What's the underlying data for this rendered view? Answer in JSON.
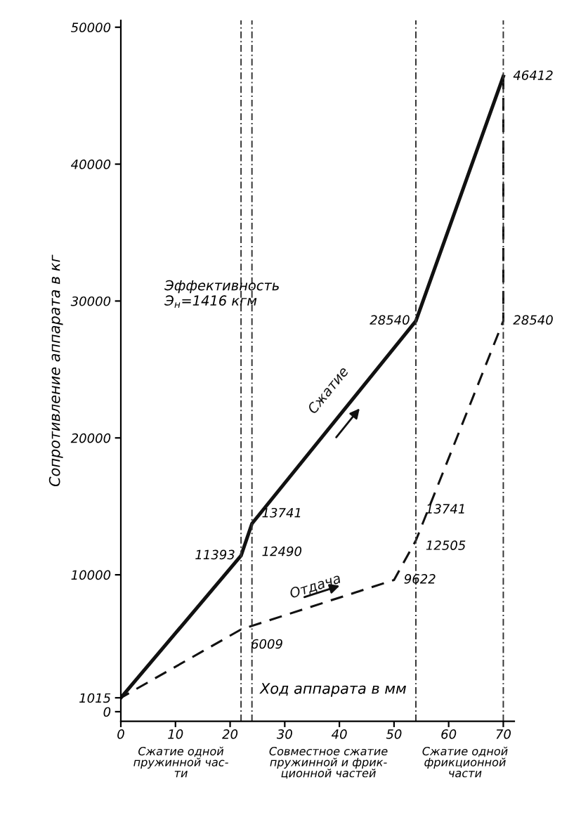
{
  "chart_data": {
    "type": "line",
    "ylabel": "Сопротивление аппарата в кг",
    "xlabel": "Ход аппарата в мм",
    "series": [
      {
        "name": "Сжатие",
        "color": "#111111",
        "line_style": "solid",
        "x": [
          0,
          22,
          24,
          54,
          70
        ],
        "values": [
          1015,
          11393,
          13741,
          28540,
          46412
        ]
      },
      {
        "name": "Отдача",
        "color": "#111111",
        "line_style": "dashed",
        "x": [
          70,
          70,
          54,
          50,
          22,
          0
        ],
        "values": [
          46412,
          28540,
          12505,
          9622,
          6009,
          1015
        ]
      }
    ],
    "xlim": [
      0,
      72
    ],
    "ylim": [
      -700,
      50500
    ],
    "xticks": [
      0,
      10,
      20,
      30,
      40,
      50,
      60,
      70
    ],
    "yticks": [
      0,
      1015,
      10000,
      20000,
      30000,
      40000,
      50000
    ],
    "ref_lines": [
      {
        "axis": "x",
        "value": 22,
        "line_style": "dashed",
        "color": "#333333"
      },
      {
        "axis": "x",
        "value": 24,
        "line_style": "dashed",
        "color": "#333333"
      },
      {
        "axis": "x",
        "value": 54,
        "line_style": "dashed",
        "color": "#333333"
      },
      {
        "axis": "x",
        "value": 70,
        "line_style": "dashed",
        "color": "#333333"
      }
    ],
    "annotations": [
      {
        "text": "46412",
        "x": 70,
        "y": 46412
      },
      {
        "text": "28540",
        "x": 54,
        "y": 28540
      },
      {
        "text": "28540",
        "x": 70,
        "y": 28540
      },
      {
        "text": "11393",
        "x": 22,
        "y": 11393
      },
      {
        "text": "13741",
        "x": 24,
        "y": 13741
      },
      {
        "text": "12490",
        "x": 24,
        "y": 12490
      },
      {
        "text": "6009",
        "x": 22,
        "y": 6009
      },
      {
        "text": "13741",
        "x": 54,
        "y": 13741
      },
      {
        "text": "12505",
        "x": 54,
        "y": 12505
      },
      {
        "text": "9622",
        "x": 50,
        "y": 9622
      },
      "Эффективность\nЭ$_{н}$=1416 кгм",
      "Сжатие одной\nпружинной час-\nти",
      "Совместное сжатие\nпружинной и фрик-\nционной частей",
      "Сжатие одной\nфрикционной\nчасти"
    ],
    "grid": false,
    "marker": "none"
  }
}
